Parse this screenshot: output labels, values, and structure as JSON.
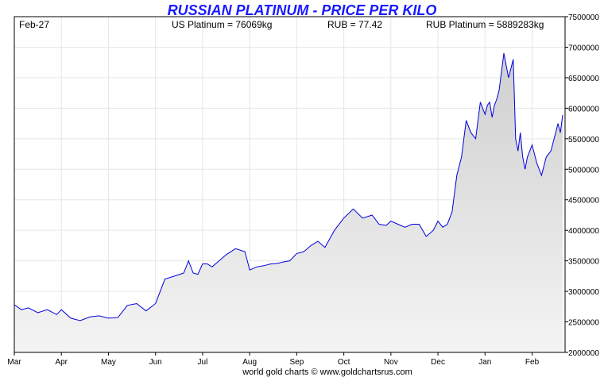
{
  "header": {
    "title": "RUSSIAN PLATINUM - PRICE PER KILO",
    "date": "Feb-27",
    "us_platinum": "US Platinum = 76069kg",
    "rub_rate": "RUB = 77.42",
    "rub_platinum": "RUB Platinum = 5889283kg"
  },
  "footer": "world gold charts © www.goldchartsrus.com",
  "colors": {
    "title": "#1a1aff",
    "line": "#0000dd",
    "fill_top": "#cfcfcf",
    "fill_bottom": "#f4f4f4",
    "grid": "#e6e6e6"
  },
  "chart_data": {
    "type": "area",
    "title": "RUSSIAN PLATINUM - PRICE PER KILO",
    "xlabel": "",
    "ylabel": "",
    "ylim": [
      2000000,
      7500000
    ],
    "y_axis_position": "right",
    "grid": true,
    "x_tick_labels": [
      "Mar",
      "Apr",
      "May",
      "Jun",
      "Jul",
      "Aug",
      "Sep",
      "Oct",
      "Nov",
      "Dec",
      "Jan",
      "Feb"
    ],
    "y_tick_labels": [
      "2000000",
      "2500000",
      "3000000",
      "3500000",
      "4000000",
      "4500000",
      "5000000",
      "5500000",
      "6000000",
      "6500000",
      "7000000",
      "7500000"
    ],
    "series": [
      {
        "x_month_index": [
          0,
          0.15,
          0.3,
          0.5,
          0.7,
          0.9,
          1.0,
          1.2,
          1.4,
          1.6,
          1.8,
          2.0,
          2.2,
          2.4,
          2.6,
          2.8,
          3.0,
          3.2,
          3.4,
          3.6,
          3.7,
          3.8,
          3.9,
          4.0,
          4.1,
          4.2,
          4.35,
          4.5,
          4.7,
          4.9,
          5.0,
          5.15,
          5.3,
          5.45,
          5.6,
          5.7,
          5.85,
          6.0,
          6.15,
          6.3,
          6.45,
          6.6,
          6.8,
          7.0,
          7.2,
          7.4,
          7.6,
          7.75,
          7.9,
          8.0,
          8.15,
          8.3,
          8.45,
          8.6,
          8.75,
          8.9,
          9.0,
          9.1,
          9.2,
          9.3,
          9.4,
          9.5,
          9.6,
          9.7,
          9.8,
          9.9,
          10.0,
          10.05,
          10.1,
          10.15,
          10.2,
          10.25,
          10.3,
          10.35,
          10.4,
          10.5,
          10.6,
          10.65,
          10.7,
          10.75,
          10.8,
          10.85,
          10.9,
          10.95,
          11.0,
          11.1,
          11.2,
          11.3,
          11.4,
          11.5,
          11.55,
          11.6,
          11.65
        ],
        "y": [
          2780000,
          2700000,
          2730000,
          2650000,
          2700000,
          2620000,
          2700000,
          2560000,
          2520000,
          2580000,
          2600000,
          2560000,
          2570000,
          2770000,
          2800000,
          2680000,
          2800000,
          3200000,
          3250000,
          3300000,
          3500000,
          3300000,
          3280000,
          3450000,
          3450000,
          3400000,
          3500000,
          3600000,
          3700000,
          3650000,
          3350000,
          3400000,
          3420000,
          3450000,
          3460000,
          3480000,
          3500000,
          3620000,
          3650000,
          3750000,
          3820000,
          3720000,
          4000000,
          4200000,
          4350000,
          4200000,
          4250000,
          4100000,
          4080000,
          4150000,
          4100000,
          4050000,
          4100000,
          4100000,
          3900000,
          4000000,
          4150000,
          4050000,
          4100000,
          4300000,
          4900000,
          5200000,
          5800000,
          5600000,
          5500000,
          6100000,
          5900000,
          6050000,
          6100000,
          5850000,
          6050000,
          6150000,
          6300000,
          6600000,
          6900000,
          6500000,
          6800000,
          5500000,
          5300000,
          5600000,
          5200000,
          5000000,
          5200000,
          5300000,
          5400000,
          5100000,
          4900000,
          5200000,
          5300000,
          5600000,
          5750000,
          5600000,
          5890000
        ]
      }
    ]
  }
}
